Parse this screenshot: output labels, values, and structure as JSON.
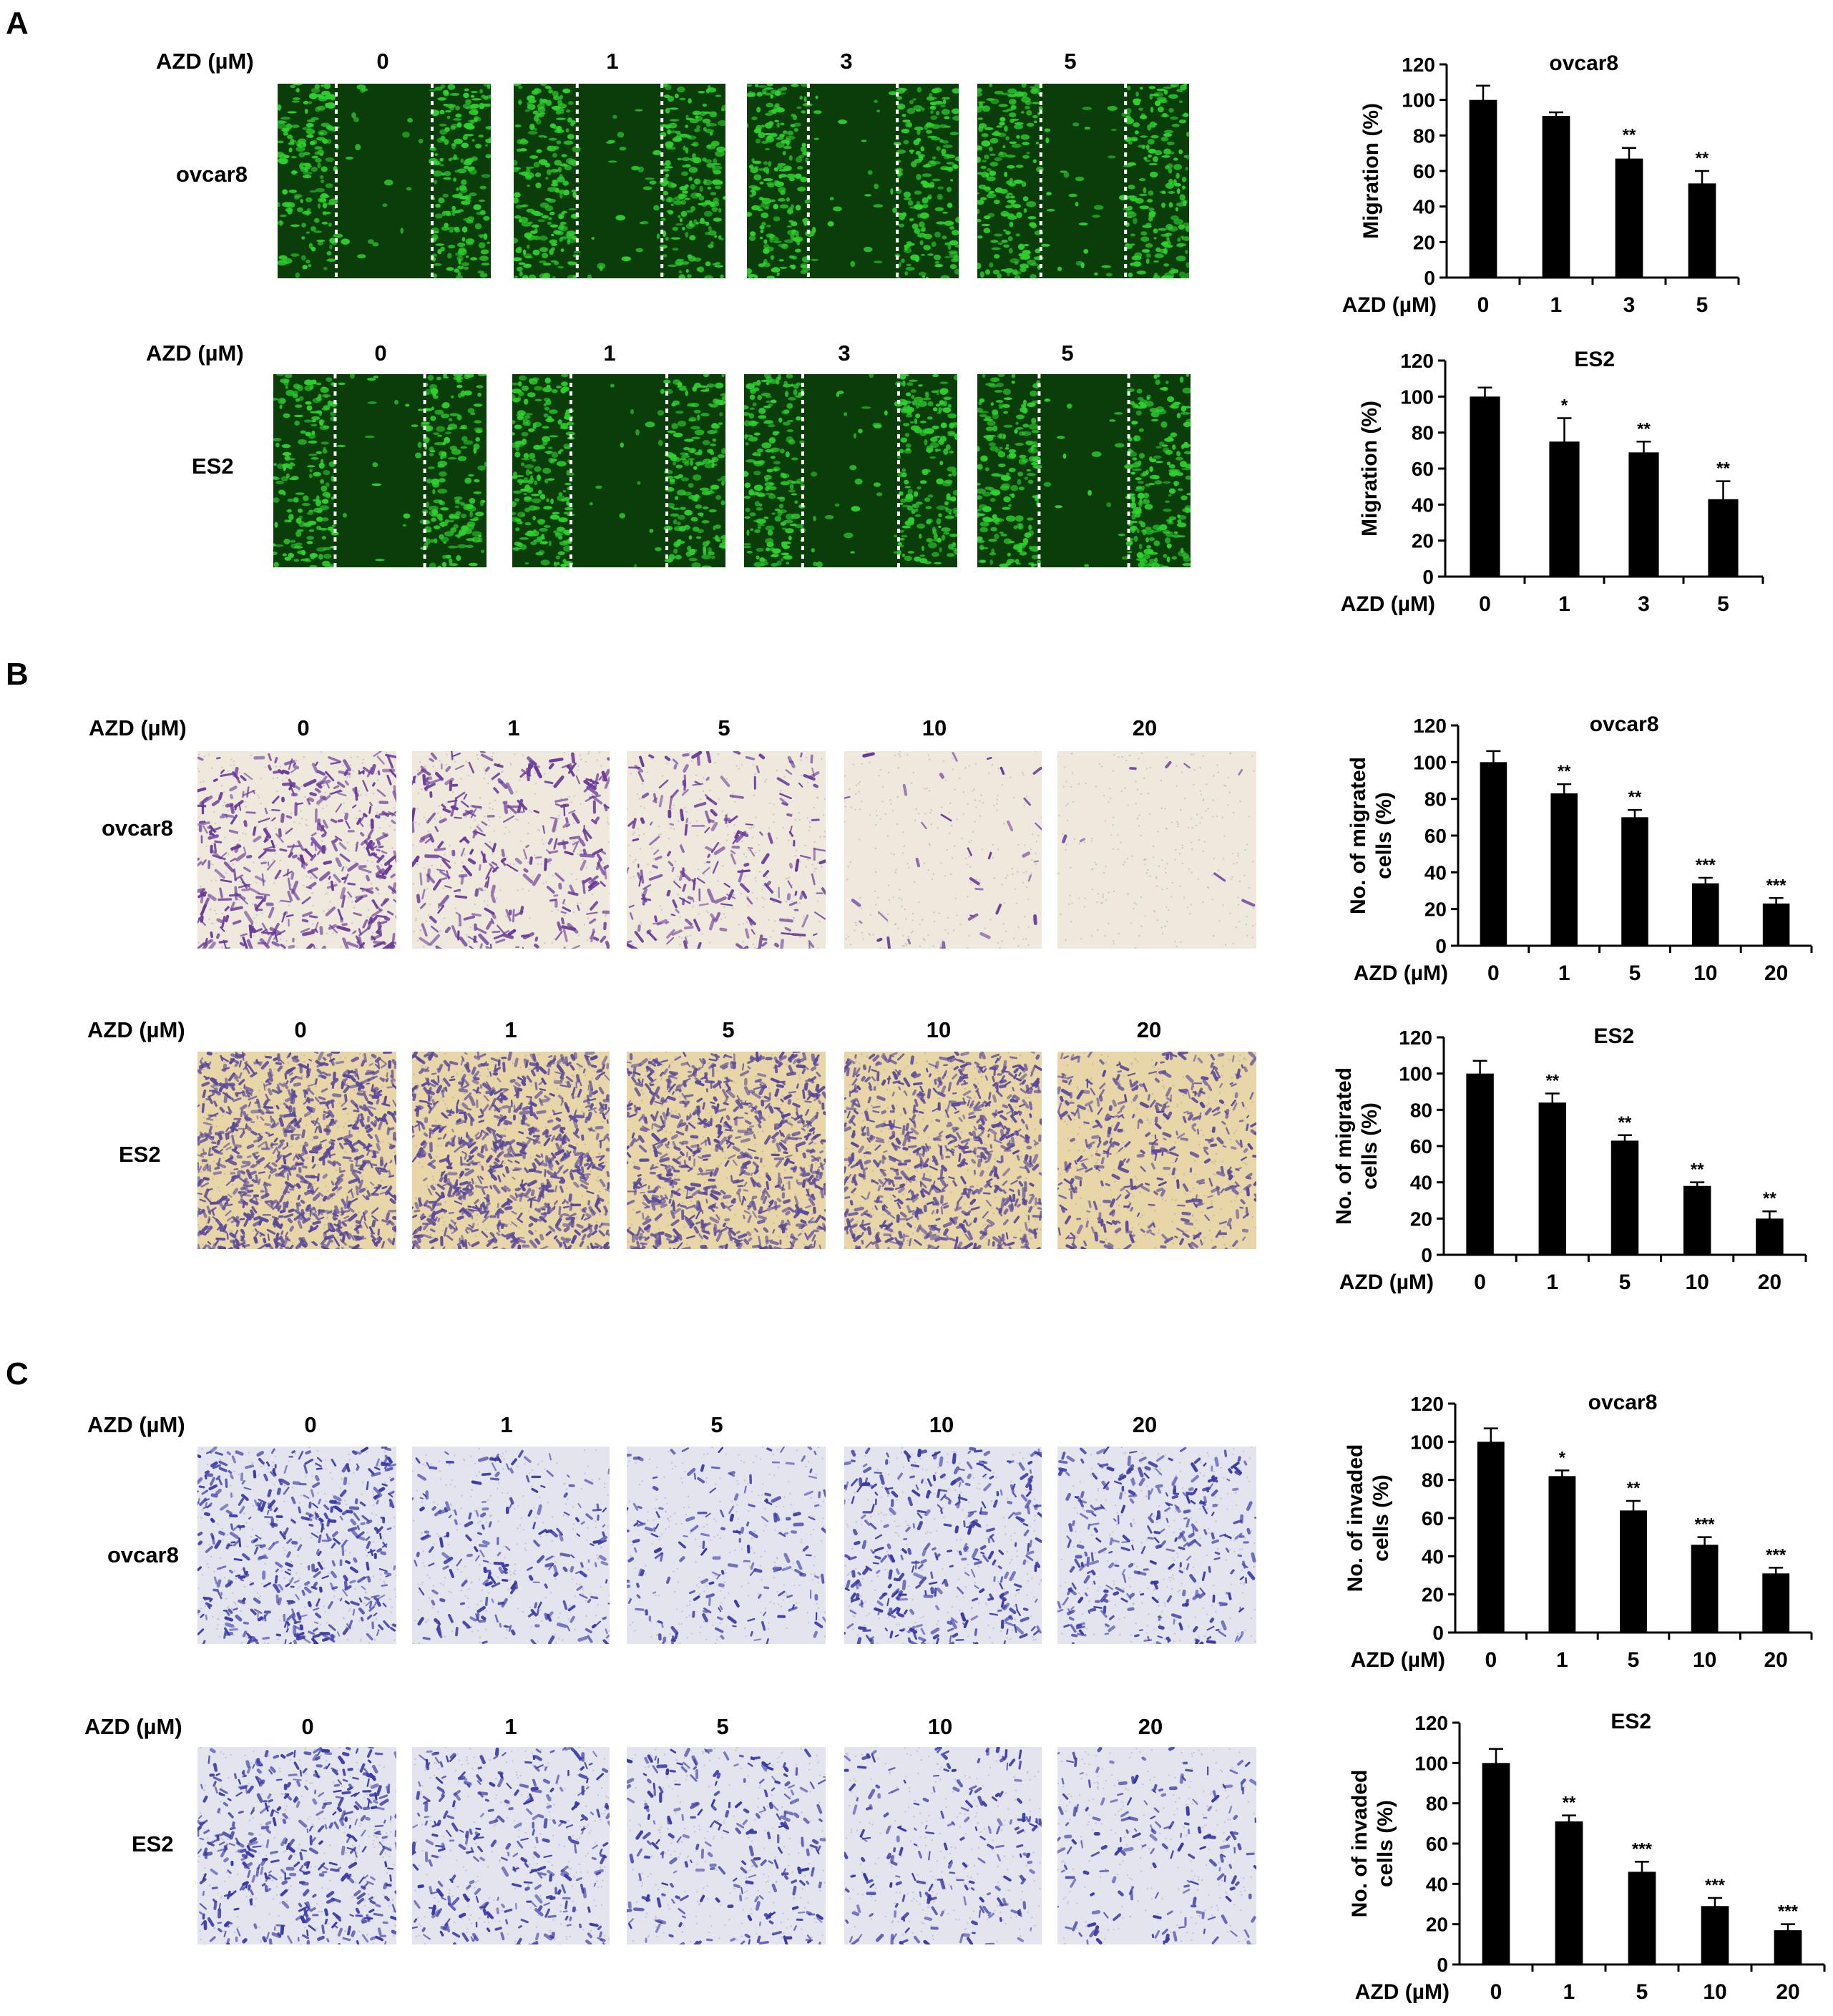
{
  "panels": [
    {
      "letter": "A",
      "rows": [
        {
          "cell_line": "ovcar8",
          "axis_label": "AZD (µM)",
          "doses": [
            "0",
            "1",
            "3",
            "5"
          ],
          "stain": "green"
        },
        {
          "cell_line": "ES2",
          "axis_label": "AZD (µM)",
          "doses": [
            "0",
            "1",
            "3",
            "5"
          ],
          "stain": "green"
        }
      ]
    },
    {
      "letter": "B",
      "rows": [
        {
          "cell_line": "ovcar8",
          "axis_label": "AZD (µM)",
          "doses": [
            "0",
            "1",
            "5",
            "10",
            "20"
          ],
          "stain": "purple"
        },
        {
          "cell_line": "ES2",
          "axis_label": "AZD (µM)",
          "doses": [
            "0",
            "1",
            "5",
            "10",
            "20"
          ],
          "stain": "purple-dense"
        }
      ]
    },
    {
      "letter": "C",
      "rows": [
        {
          "cell_line": "ovcar8",
          "axis_label": "AZD (µM)",
          "doses": [
            "0",
            "1",
            "5",
            "10",
            "20"
          ],
          "stain": "blue"
        },
        {
          "cell_line": "ES2",
          "axis_label": "AZD (µM)",
          "doses": [
            "0",
            "1",
            "5",
            "10",
            "20"
          ],
          "stain": "blue"
        }
      ]
    }
  ],
  "chart_data": [
    {
      "type": "bar",
      "title": "ovcar8",
      "ylabel": "Migration (%)",
      "xlabel": "AZD (µM)",
      "categories": [
        "0",
        "1",
        "3",
        "5"
      ],
      "values": [
        100,
        91,
        67,
        53
      ],
      "errors": [
        8,
        2,
        6,
        7
      ],
      "annotations": [
        "",
        "",
        "**",
        "**"
      ],
      "ylim": [
        0,
        120
      ],
      "yticks": [
        0,
        20,
        40,
        60,
        80,
        100,
        120
      ]
    },
    {
      "type": "bar",
      "title": "ES2",
      "ylabel": "Migration (%)",
      "xlabel": "AZD (µM)",
      "categories": [
        "0",
        "1",
        "3",
        "5"
      ],
      "values": [
        100,
        75,
        69,
        43
      ],
      "errors": [
        5,
        13,
        6,
        10
      ],
      "annotations": [
        "",
        "*",
        "**",
        "**"
      ],
      "ylim": [
        0,
        120
      ],
      "yticks": [
        0,
        20,
        40,
        60,
        80,
        100,
        120
      ]
    },
    {
      "type": "bar",
      "title": "ovcar8",
      "ylabel_lines": [
        "No. of migrated",
        "cells (%)"
      ],
      "xlabel": "AZD (µM)",
      "categories": [
        "0",
        "1",
        "5",
        "10",
        "20"
      ],
      "values": [
        100,
        83,
        70,
        34,
        23
      ],
      "errors": [
        6,
        5,
        4,
        3,
        3
      ],
      "annotations": [
        "",
        "**",
        "**",
        "***",
        "***"
      ],
      "ylim": [
        0,
        120
      ],
      "yticks": [
        0,
        20,
        40,
        60,
        80,
        100,
        120
      ]
    },
    {
      "type": "bar",
      "title": "ES2",
      "ylabel_lines": [
        "No. of migrated",
        "cells (%)"
      ],
      "xlabel": "AZD (µM)",
      "categories": [
        "0",
        "1",
        "5",
        "10",
        "20"
      ],
      "values": [
        100,
        84,
        63,
        38,
        20
      ],
      "errors": [
        7,
        5,
        3,
        2,
        4
      ],
      "annotations": [
        "",
        "**",
        "**",
        "**",
        "**"
      ],
      "ylim": [
        0,
        120
      ],
      "yticks": [
        0,
        20,
        40,
        60,
        80,
        100,
        120
      ]
    },
    {
      "type": "bar",
      "title": "ovcar8",
      "ylabel_lines": [
        "No. of  invaded",
        "cells (%)"
      ],
      "xlabel": "AZD (µM)",
      "categories": [
        "0",
        "1",
        "5",
        "10",
        "20"
      ],
      "values": [
        100,
        82,
        64,
        46,
        31
      ],
      "errors": [
        7,
        3,
        5,
        4,
        3
      ],
      "annotations": [
        "",
        "*",
        "**",
        "***",
        "***"
      ],
      "ylim": [
        0,
        120
      ],
      "yticks": [
        0,
        20,
        40,
        60,
        80,
        100,
        120
      ]
    },
    {
      "type": "bar",
      "title": "ES2",
      "ylabel_lines": [
        "No. of  invaded",
        "cells (%)"
      ],
      "xlabel": "AZD (µM)",
      "categories": [
        "0",
        "1",
        "5",
        "10",
        "20"
      ],
      "values": [
        100,
        71,
        46,
        29,
        17
      ],
      "errors": [
        7,
        3,
        5,
        4,
        3
      ],
      "annotations": [
        "",
        "**",
        "***",
        "***",
        "***"
      ],
      "ylim": [
        0,
        120
      ],
      "yticks": [
        0,
        20,
        40,
        60,
        80,
        100,
        120
      ]
    }
  ],
  "colors": {
    "bar": "#000000",
    "green_bg": "#0a3d0a",
    "green_cell": "#2ed12e",
    "purple_bg": "#efe8dc",
    "purple_cell": "#6a3c9a",
    "purple_dense_bg": "#e8d6a8",
    "purple_dense_cell": "#5a4a9a",
    "blue_bg": "#e4e4ef",
    "blue_cell": "#3a3aa8"
  }
}
